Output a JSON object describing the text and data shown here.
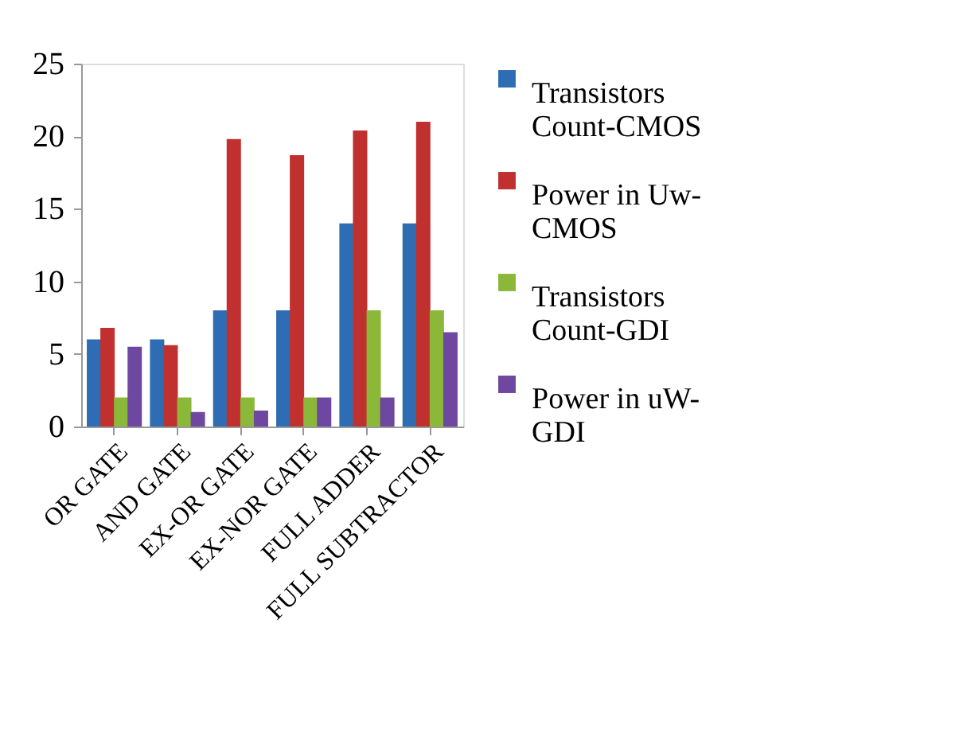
{
  "chart_data": {
    "type": "bar",
    "categories": [
      "OR GATE",
      "AND GATE",
      "EX-OR  GATE",
      "EX-NOR GATE",
      "FULL ADDER",
      "FULL SUBTRACTOR"
    ],
    "series": [
      {
        "name": "Transistors Count-CMOS",
        "color": "#2e6db4",
        "values": [
          6,
          6,
          8,
          8,
          14,
          14
        ]
      },
      {
        "name": "Power in Uw-CMOS",
        "color": "#c0302e",
        "values": [
          6.8,
          5.6,
          19.8,
          18.7,
          20.4,
          21
        ]
      },
      {
        "name": "Transistors Count-GDI",
        "color": "#8cb83a",
        "values": [
          2,
          2,
          2,
          2,
          8,
          8
        ]
      },
      {
        "name": "Power in uW-GDI",
        "color": "#6e47a0",
        "values": [
          5.5,
          1,
          1.1,
          2,
          2,
          6.5
        ]
      }
    ],
    "ylim": [
      0,
      25
    ],
    "yticks": [
      0,
      5,
      10,
      15,
      20,
      25
    ],
    "grid": false,
    "legend": "right"
  }
}
